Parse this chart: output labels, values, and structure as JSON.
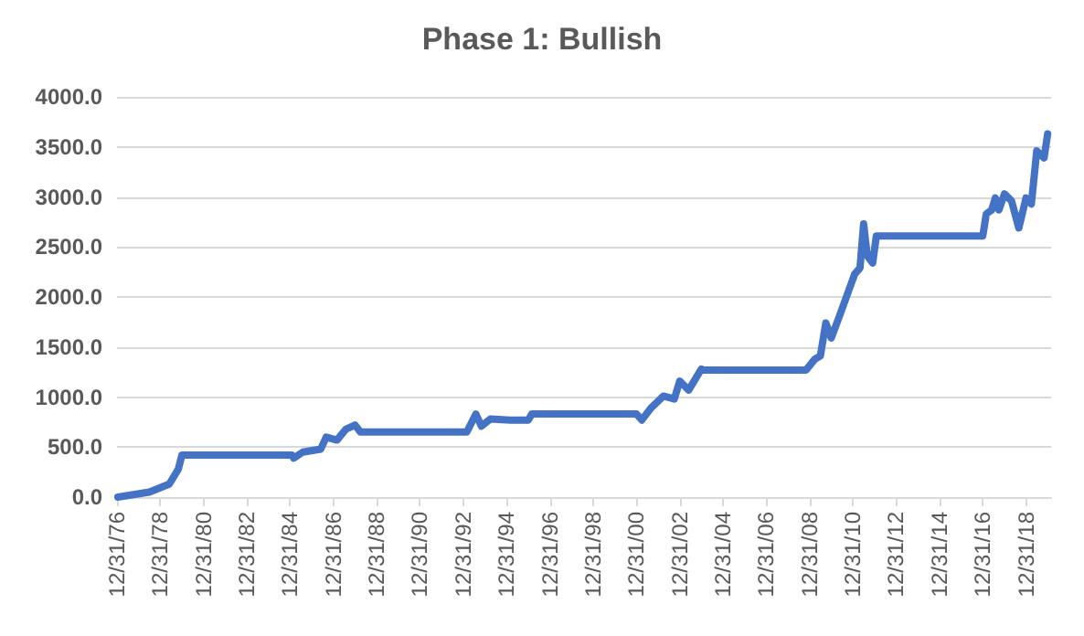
{
  "chart_data": {
    "type": "line",
    "title": "Phase 1: Bullish",
    "x": [
      "1977-01-15",
      "1978-07",
      "1979-06",
      "1979-11",
      "1980-01",
      "1985-02",
      "1985-03",
      "1985-08",
      "1986-06",
      "1986-09",
      "1987-03",
      "1987-08",
      "1988-01",
      "1988-04",
      "1993-03",
      "1993-08",
      "1993-11",
      "1994-04",
      "1995-03",
      "1996-01",
      "1996-03",
      "2001-01",
      "2001-04",
      "2001-09",
      "2002-04",
      "2002-10",
      "2003-01",
      "2003-06",
      "2004-01",
      "2004-02",
      "2008-11",
      "2009-04",
      "2009-07",
      "2009-10",
      "2010-01",
      "2010-06",
      "2010-11",
      "2011-02",
      "2011-05",
      "2011-07",
      "2011-09",
      "2011-12",
      "2012-02",
      "2017-01",
      "2017-03",
      "2017-06",
      "2017-08",
      "2017-10",
      "2018-01",
      "2018-05",
      "2018-09",
      "2019-01",
      "2019-04",
      "2019-07",
      "2019-11",
      "2020-01"
    ],
    "series": [
      {
        "color": "#4472c4",
        "values": [
          0,
          50,
          130,
          280,
          420,
          420,
          390,
          450,
          480,
          600,
          570,
          680,
          720,
          650,
          650,
          830,
          710,
          780,
          770,
          770,
          830,
          830,
          770,
          890,
          1010,
          980,
          1160,
          1070,
          1280,
          1270,
          1270,
          1380,
          1410,
          1740,
          1590,
          1830,
          2080,
          2230,
          2290,
          2730,
          2410,
          2340,
          2610,
          2610,
          2830,
          2870,
          2990,
          2870,
          3030,
          2960,
          2690,
          2990,
          2930,
          3460,
          3390,
          3630
        ]
      }
    ],
    "xlim": [
      "1976-12-31",
      "2020-02-28"
    ],
    "xticks": [
      {
        "value": "1976-12-31",
        "label": "12/31/76"
      },
      {
        "value": "1978-12-31",
        "label": "12/31/78"
      },
      {
        "value": "1980-12-31",
        "label": "12/31/80"
      },
      {
        "value": "1982-12-31",
        "label": "12/31/82"
      },
      {
        "value": "1984-12-31",
        "label": "12/31/84"
      },
      {
        "value": "1986-12-31",
        "label": "12/31/86"
      },
      {
        "value": "1988-12-31",
        "label": "12/31/88"
      },
      {
        "value": "1990-12-31",
        "label": "12/31/90"
      },
      {
        "value": "1992-12-31",
        "label": "12/31/92"
      },
      {
        "value": "1994-12-31",
        "label": "12/31/94"
      },
      {
        "value": "1996-12-31",
        "label": "12/31/96"
      },
      {
        "value": "1998-12-31",
        "label": "12/31/98"
      },
      {
        "value": "2000-12-31",
        "label": "12/31/00"
      },
      {
        "value": "2002-12-31",
        "label": "12/31/02"
      },
      {
        "value": "2004-12-31",
        "label": "12/31/04"
      },
      {
        "value": "2006-12-31",
        "label": "12/31/06"
      },
      {
        "value": "2008-12-31",
        "label": "12/31/08"
      },
      {
        "value": "2010-12-31",
        "label": "12/31/10"
      },
      {
        "value": "2012-12-31",
        "label": "12/31/12"
      },
      {
        "value": "2014-12-31",
        "label": "12/31/14"
      },
      {
        "value": "2016-12-31",
        "label": "12/31/16"
      },
      {
        "value": "2018-12-31",
        "label": "12/31/18"
      }
    ],
    "ylim": [
      0,
      4000
    ],
    "yticks": [
      {
        "value": 0,
        "label": "0.0"
      },
      {
        "value": 500,
        "label": "500.0"
      },
      {
        "value": 1000,
        "label": "1000.0"
      },
      {
        "value": 1500,
        "label": "1500.0"
      },
      {
        "value": 2000,
        "label": "2000.0"
      },
      {
        "value": 2500,
        "label": "2500.0"
      },
      {
        "value": 3000,
        "label": "3000.0"
      },
      {
        "value": 3500,
        "label": "3500.0"
      },
      {
        "value": 4000,
        "label": "4000.0"
      }
    ],
    "grid": "y",
    "marker": "none",
    "line_style": "solid"
  }
}
